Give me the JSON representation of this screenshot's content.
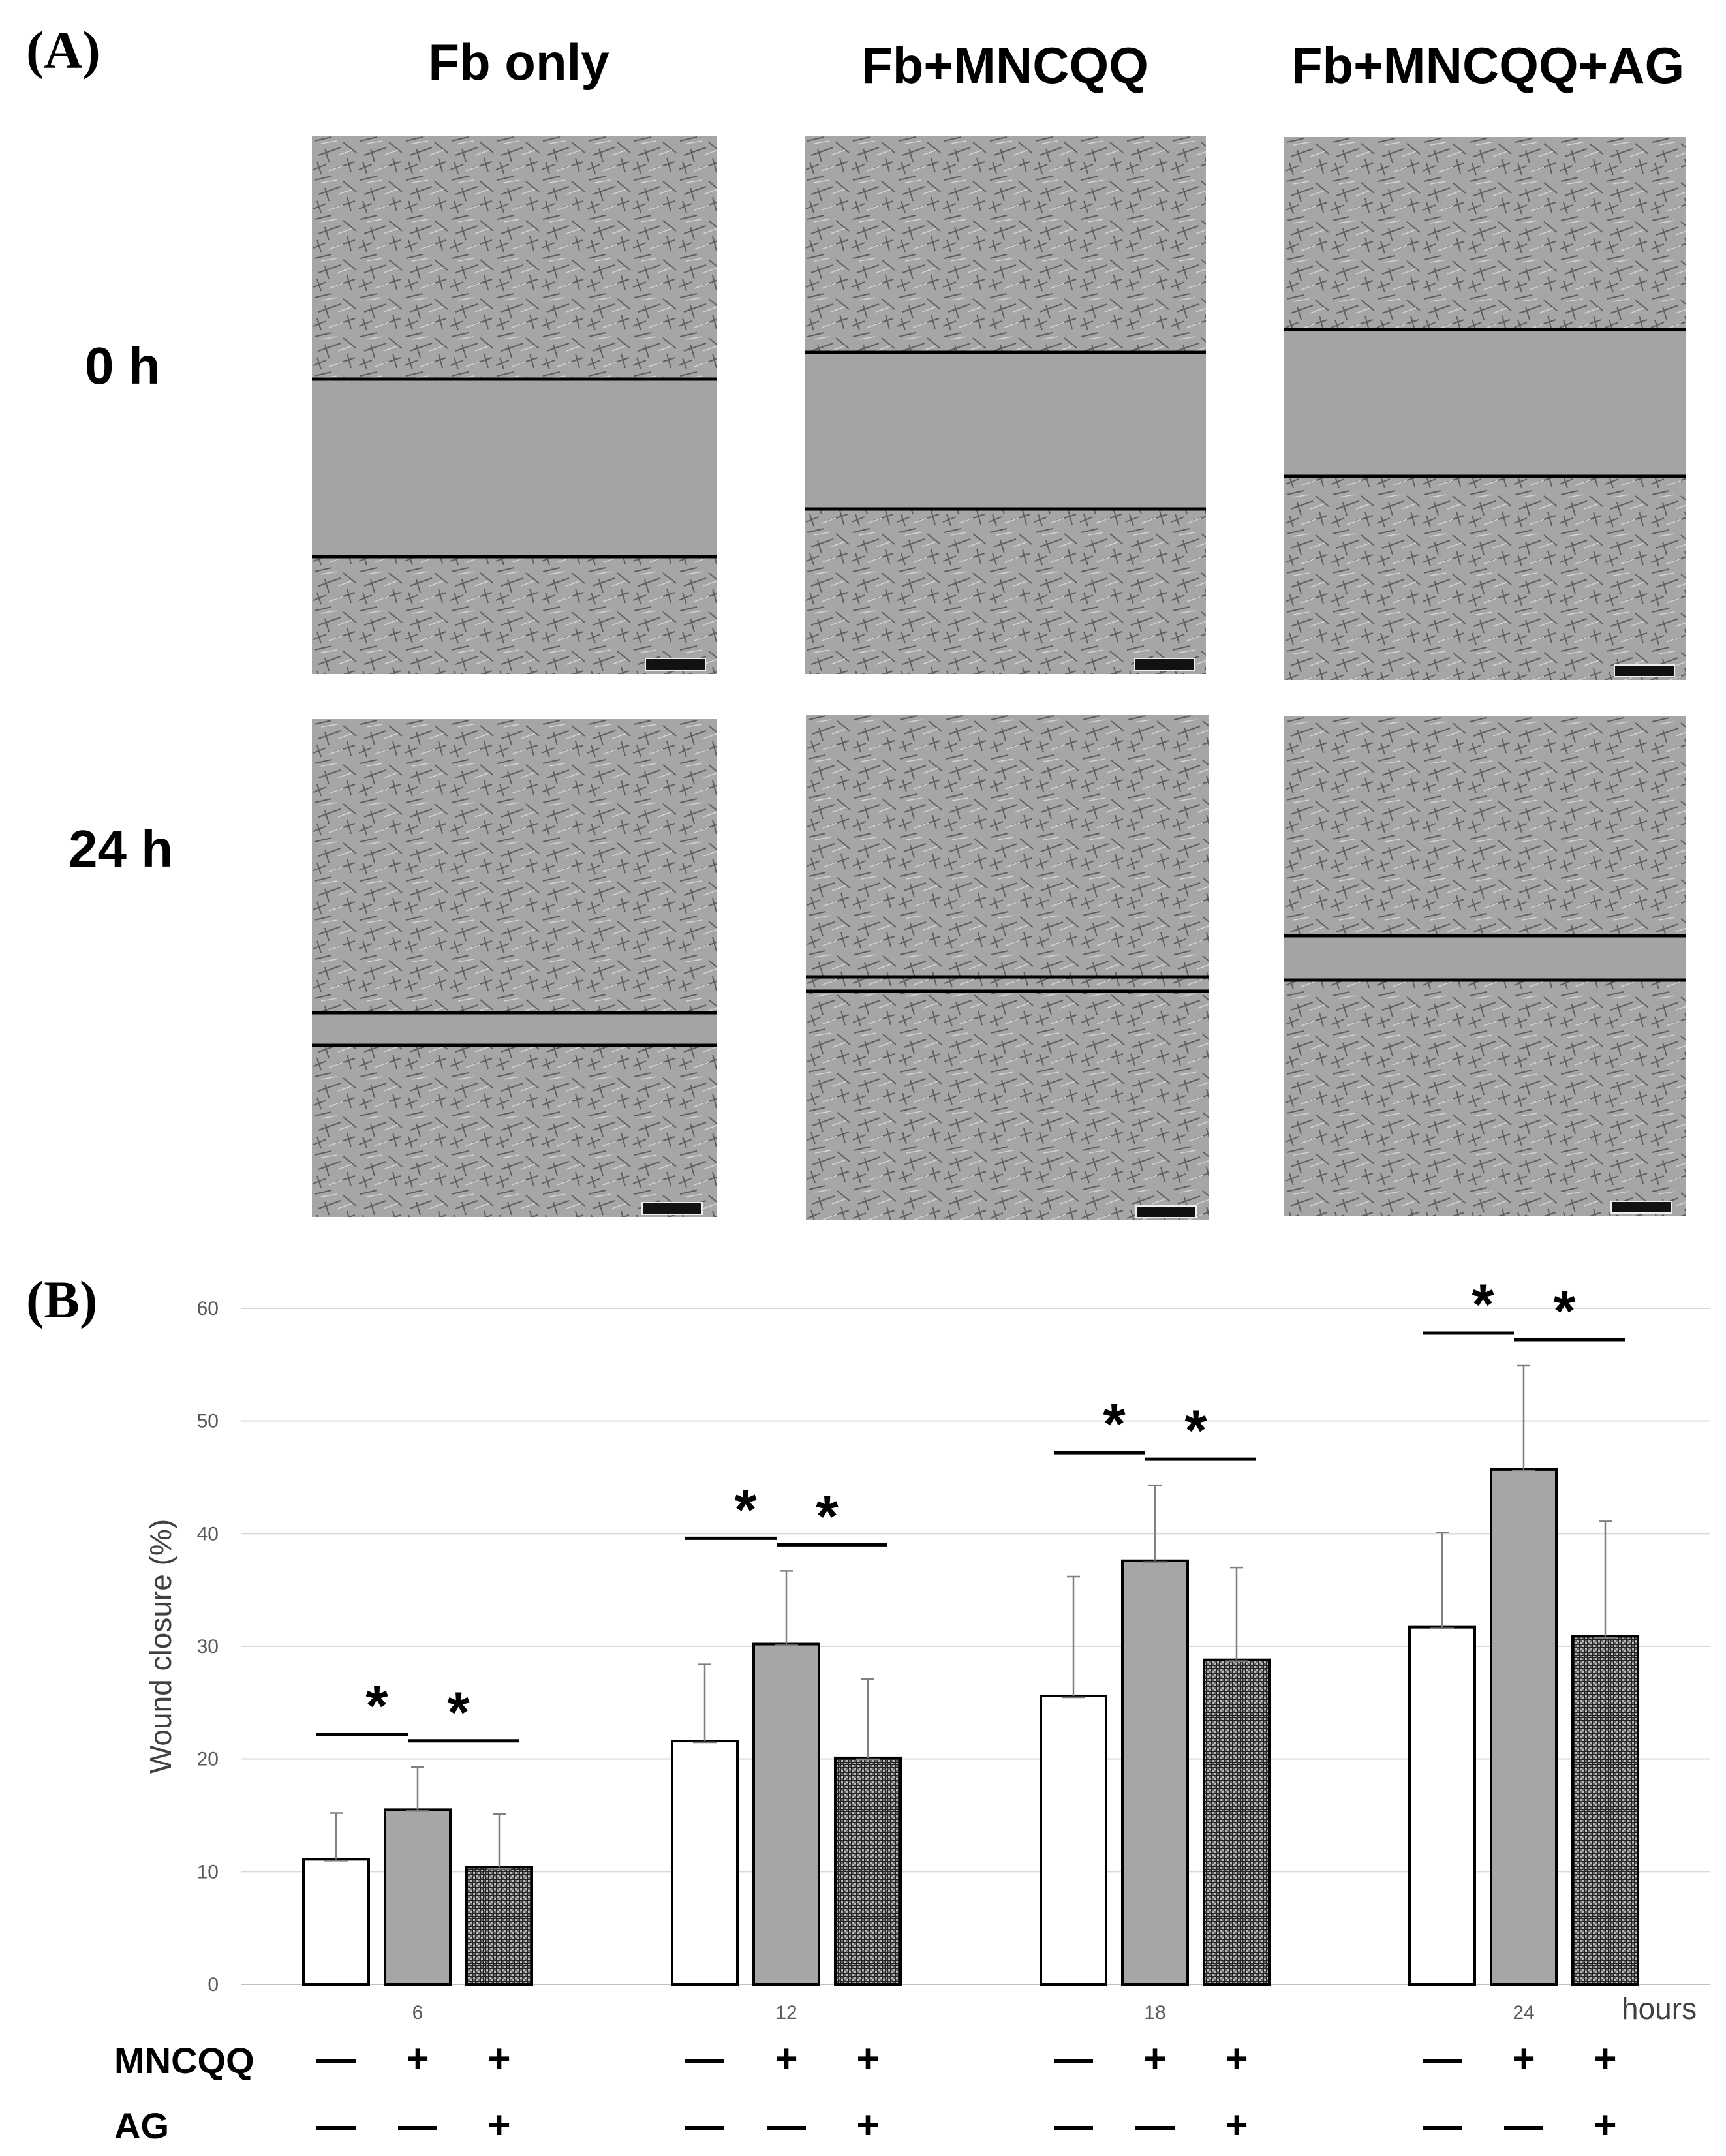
{
  "panel_a": {
    "label": "(A)",
    "columns": [
      "Fb only",
      "Fb+MNCQQ",
      "Fb+MNCQQ+AG"
    ],
    "rows": [
      "0 h",
      "24 h"
    ]
  },
  "panel_b": {
    "label": "(B)",
    "treatment_rows": [
      {
        "name": "MNCQQ",
        "signs": [
          "—",
          "+",
          "+",
          "—",
          "+",
          "+",
          "—",
          "+",
          "+",
          "—",
          "+",
          "+"
        ]
      },
      {
        "name": "AG",
        "signs": [
          "—",
          "—",
          "+",
          "—",
          "—",
          "+",
          "—",
          "—",
          "+",
          "—",
          "—",
          "+"
        ]
      }
    ]
  },
  "chart_data": {
    "type": "bar",
    "ylabel": "Wound closure (%)",
    "xlabel": "hours",
    "ylim": [
      0,
      60
    ],
    "yticks": [
      0,
      10,
      20,
      30,
      40,
      50,
      60
    ],
    "grid": true,
    "categories": [
      "6",
      "12",
      "18",
      "24"
    ],
    "series": [
      {
        "name": "Fb only",
        "fill": "white",
        "values": [
          11.1,
          21.6,
          25.6,
          31.7
        ],
        "errors": [
          4.1,
          6.8,
          10.6,
          8.4
        ]
      },
      {
        "name": "Fb+MNCQQ",
        "fill": "gray",
        "values": [
          15.5,
          30.2,
          37.6,
          45.7
        ],
        "errors": [
          3.8,
          6.5,
          6.7,
          9.2
        ]
      },
      {
        "name": "Fb+MNCQQ+AG",
        "fill": "checkered",
        "values": [
          10.4,
          20.1,
          28.8,
          30.9
        ],
        "errors": [
          4.7,
          7.0,
          8.2,
          10.2
        ]
      }
    ],
    "significance": [
      {
        "category": "6",
        "pairs": [
          [
            "Fb only",
            "Fb+MNCQQ"
          ],
          [
            "Fb+MNCQQ",
            "Fb+MNCQQ+AG"
          ]
        ],
        "symbol": "*"
      },
      {
        "category": "12",
        "pairs": [
          [
            "Fb only",
            "Fb+MNCQQ"
          ],
          [
            "Fb+MNCQQ",
            "Fb+MNCQQ+AG"
          ]
        ],
        "symbol": "*"
      },
      {
        "category": "18",
        "pairs": [
          [
            "Fb only",
            "Fb+MNCQQ"
          ],
          [
            "Fb+MNCQQ",
            "Fb+MNCQQ+AG"
          ]
        ],
        "symbol": "*"
      },
      {
        "category": "24",
        "pairs": [
          [
            "Fb only",
            "Fb+MNCQQ"
          ],
          [
            "Fb+MNCQQ",
            "Fb+MNCQQ+AG"
          ]
        ],
        "symbol": "*"
      }
    ]
  }
}
